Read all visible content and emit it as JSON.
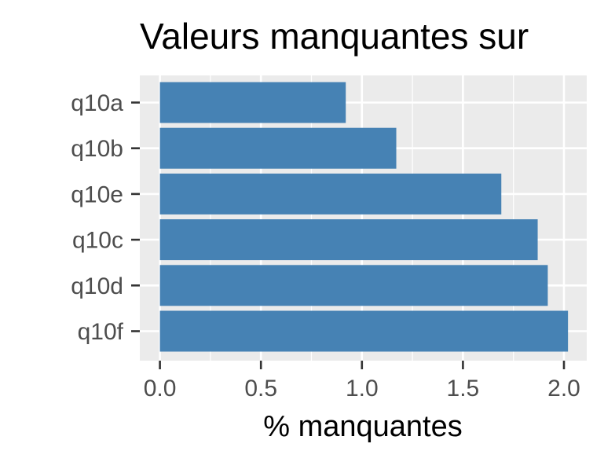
{
  "chart_data": {
    "type": "bar",
    "orientation": "horizontal",
    "title": "Valeurs manquantes sur",
    "xlabel": "% manquantes",
    "ylabel": "",
    "categories": [
      "q10a",
      "q10b",
      "q10e",
      "q10c",
      "q10d",
      "q10f"
    ],
    "values": [
      0.92,
      1.17,
      1.69,
      1.87,
      1.92,
      2.02
    ],
    "xlim": [
      0,
      2.1
    ],
    "xticks": [
      "0.0",
      "0.5",
      "1.0",
      "1.5",
      "2.0"
    ],
    "grid": true,
    "legend": "none",
    "colors": {
      "bar": "#4682b4",
      "panel": "#ebebeb",
      "grid": "#ffffff",
      "tick": "#333333"
    }
  }
}
